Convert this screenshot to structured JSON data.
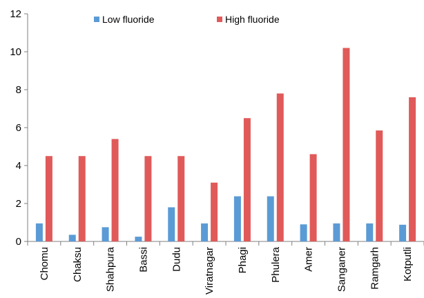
{
  "chart_data": {
    "type": "bar",
    "title": "",
    "xlabel": "",
    "ylabel": "",
    "ylim": [
      0,
      12
    ],
    "yticks": [
      0,
      2,
      4,
      6,
      8,
      10,
      12
    ],
    "grid": false,
    "legend_position": "top",
    "categories": [
      "Chomu",
      "Chaksu",
      "Shahpura",
      "Bassi",
      "Dudu",
      "Viratnagar",
      "Phagi",
      "Phulera",
      "Amer",
      "Sanganer",
      "Ramgarh",
      "Kotputli"
    ],
    "series": [
      {
        "name": "Low fluoride",
        "color": "#5b9bd5",
        "values": [
          0.95,
          0.35,
          0.75,
          0.25,
          1.8,
          0.95,
          2.38,
          2.38,
          0.9,
          0.95,
          0.95,
          0.88
        ]
      },
      {
        "name": "High fluoride",
        "color": "#e05a5a",
        "values": [
          4.5,
          4.5,
          5.4,
          4.5,
          4.5,
          3.1,
          6.5,
          7.8,
          4.6,
          10.2,
          5.85,
          7.6
        ]
      }
    ]
  }
}
